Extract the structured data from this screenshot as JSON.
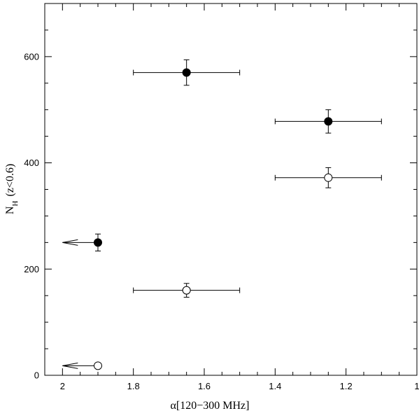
{
  "chart_data": {
    "type": "scatter",
    "title": "",
    "xlabel": "α[120−300 MHz]",
    "ylabel": {
      "main": "N",
      "sub": "H",
      "suffix": "(z<0.6)"
    },
    "xlim": [
      2.05,
      1.0
    ],
    "ylim": [
      0,
      700
    ],
    "x_ticks_major": [
      2,
      1.8,
      1.6,
      1.4,
      1.2,
      1
    ],
    "x_tick_labels": [
      "2",
      "1.8",
      "1.6",
      "1.4",
      "1.2",
      "1"
    ],
    "y_ticks_major": [
      0,
      200,
      400,
      600
    ],
    "y_tick_labels": [
      "0",
      "200",
      "400",
      "600"
    ],
    "grid": false,
    "series": [
      {
        "marker": "filled-circle",
        "points": [
          {
            "x": 1.65,
            "y": 570,
            "xerr": [
              1.8,
              1.5
            ],
            "yerr": [
              546,
              594
            ]
          },
          {
            "x": 1.25,
            "y": 478,
            "xerr": [
              1.4,
              1.1
            ],
            "yerr": [
              456,
              500
            ]
          },
          {
            "x": 1.9,
            "y": 250,
            "yerr": [
              234,
              266
            ],
            "upper_limit_arrow_to_x": 2.0
          }
        ]
      },
      {
        "marker": "open-circle",
        "points": [
          {
            "x": 1.65,
            "y": 160,
            "xerr": [
              1.8,
              1.5
            ],
            "yerr": [
              147,
              173
            ]
          },
          {
            "x": 1.25,
            "y": 372,
            "xerr": [
              1.4,
              1.1
            ],
            "yerr": [
              353,
              391
            ]
          },
          {
            "x": 1.9,
            "y": 18,
            "upper_limit_arrow_to_x": 2.0
          }
        ]
      }
    ]
  }
}
